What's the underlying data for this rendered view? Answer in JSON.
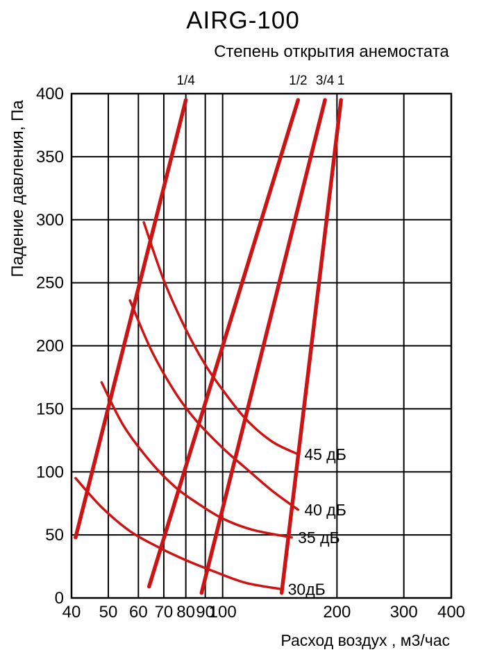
{
  "chart_data": {
    "type": "line",
    "title": "AIRG-100",
    "top_axis_title": "Степень открытия анемостата",
    "xlabel": "Расход воздух , м3/час",
    "ylabel": "Падение давления, Па",
    "x_scale": "log",
    "y_scale": "linear",
    "xlim": [
      40,
      400
    ],
    "ylim": [
      0,
      400
    ],
    "x_ticks": [
      40,
      50,
      60,
      70,
      80,
      90,
      100,
      200,
      300,
      400
    ],
    "y_ticks": [
      0,
      50,
      100,
      150,
      200,
      250,
      300,
      350,
      400
    ],
    "grid": true,
    "legend": "none",
    "grid_color": "#000000",
    "curve_color": "#cc1414",
    "opening_lines": [
      {
        "label": "1/4",
        "points": [
          [
            41,
            48
          ],
          [
            80,
            395
          ]
        ]
      },
      {
        "label": "1/2",
        "points": [
          [
            64,
            9
          ],
          [
            158,
            395
          ]
        ]
      },
      {
        "label": "3/4",
        "points": [
          [
            88,
            4
          ],
          [
            186,
            395
          ]
        ]
      },
      {
        "label": "1",
        "points": [
          [
            143,
            4
          ],
          [
            205,
            395
          ]
        ]
      }
    ],
    "noise_curves": [
      {
        "label": "45 дБ",
        "points": [
          [
            62,
            298
          ],
          [
            70,
            252
          ],
          [
            80,
            213
          ],
          [
            90,
            185
          ],
          [
            100,
            165
          ],
          [
            115,
            142
          ],
          [
            135,
            124
          ],
          [
            158,
            114
          ]
        ]
      },
      {
        "label": "40 дБ",
        "points": [
          [
            57,
            236
          ],
          [
            65,
            196
          ],
          [
            75,
            163
          ],
          [
            85,
            141
          ],
          [
            100,
            119
          ],
          [
            115,
            103
          ],
          [
            135,
            85
          ],
          [
            158,
            70
          ]
        ]
      },
      {
        "label": "35 дБ",
        "points": [
          [
            48,
            171
          ],
          [
            55,
            136
          ],
          [
            65,
            107
          ],
          [
            75,
            88
          ],
          [
            85,
            76
          ],
          [
            100,
            63
          ],
          [
            120,
            54
          ],
          [
            152,
            48
          ]
        ]
      },
      {
        "label": "30дБ",
        "points": [
          [
            41,
            95
          ],
          [
            48,
            72
          ],
          [
            57,
            53
          ],
          [
            68,
            40
          ],
          [
            80,
            30
          ],
          [
            95,
            21
          ],
          [
            115,
            12
          ],
          [
            143,
            7
          ]
        ]
      }
    ]
  }
}
